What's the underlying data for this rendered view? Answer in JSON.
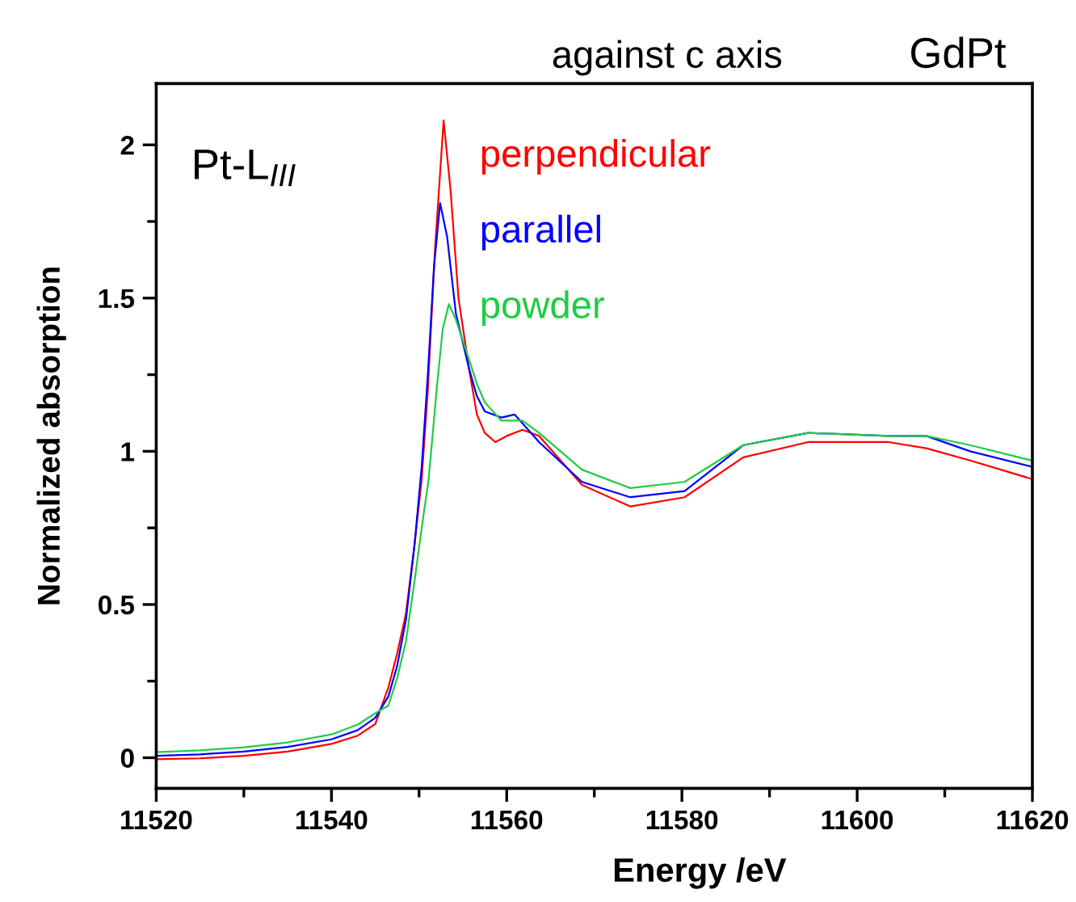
{
  "chart_data": {
    "type": "line",
    "title": "against c axis",
    "subtitle": "GdPt",
    "xlabel": "Energy /eV",
    "ylabel": "Normalized absorption",
    "annotations": [
      "Pt-L$_{III}$"
    ],
    "xlim": [
      11520,
      11620
    ],
    "xticks": [
      11520,
      11540,
      11560,
      11580,
      11600,
      11620
    ],
    "ylim": [
      -0.1,
      2.2
    ],
    "yticks": [
      0,
      0.5,
      1,
      1.5,
      2
    ],
    "grid": false,
    "legend": "top",
    "marker": "none",
    "line_style": "solid",
    "series": [
      {
        "name": "perpendicular",
        "color": "#ff0000",
        "x": [
          11520,
          11525,
          11530,
          11535,
          11540,
          11543,
          11545,
          11546.5,
          11547.5,
          11548.5,
          11549.5,
          11550.3,
          11551,
          11551.8,
          11552.8,
          11553.6,
          11554.5,
          11555.7,
          11556.6,
          11557.5,
          11558.7,
          11560,
          11561.8,
          11563.7,
          11568.6,
          11574.1,
          11580.3,
          11587,
          11594.4,
          11603.6,
          11607.9,
          11612.9,
          11619.9
        ],
        "values": [
          -0.005,
          -0.002,
          0.006,
          0.02,
          0.045,
          0.072,
          0.11,
          0.23,
          0.34,
          0.47,
          0.7,
          0.91,
          1.2,
          1.65,
          2.08,
          1.85,
          1.5,
          1.27,
          1.12,
          1.06,
          1.03,
          1.05,
          1.07,
          1.05,
          0.89,
          0.82,
          0.85,
          0.98,
          1.03,
          1.03,
          1.01,
          0.97,
          0.91
        ]
      },
      {
        "name": "parallel",
        "color": "#0000ff",
        "x": [
          11520,
          11525,
          11530,
          11535,
          11540,
          11543,
          11545,
          11546.5,
          11547.5,
          11548.5,
          11549.5,
          11550.3,
          11551,
          11551.7,
          11552.4,
          11553.2,
          11554.2,
          11555.7,
          11556.6,
          11557.5,
          11559.4,
          11560.9,
          11563.7,
          11568.6,
          11574.1,
          11580.3,
          11587,
          11594.4,
          11603.6,
          11607.9,
          11612.9,
          11619.9
        ],
        "values": [
          0.006,
          0.011,
          0.02,
          0.035,
          0.06,
          0.09,
          0.13,
          0.2,
          0.3,
          0.45,
          0.7,
          0.95,
          1.25,
          1.6,
          1.81,
          1.7,
          1.45,
          1.27,
          1.18,
          1.13,
          1.11,
          1.12,
          1.03,
          0.9,
          0.85,
          0.87,
          1.02,
          1.06,
          1.05,
          1.05,
          1.0,
          0.95
        ]
      },
      {
        "name": "powder",
        "color": "#22cc44",
        "x": [
          11520,
          11525,
          11530,
          11535,
          11540,
          11543,
          11545,
          11546.5,
          11547.5,
          11548.5,
          11549.5,
          11550.3,
          11551.1,
          11552,
          11552.7,
          11553.4,
          11554.2,
          11555,
          11555.7,
          11556.6,
          11557.5,
          11559.4,
          11561.8,
          11563.7,
          11568.6,
          11574.1,
          11580.3,
          11587,
          11594.4,
          11603.6,
          11607.9,
          11612.9,
          11619.9
        ],
        "values": [
          0.018,
          0.024,
          0.034,
          0.05,
          0.076,
          0.108,
          0.145,
          0.17,
          0.26,
          0.38,
          0.58,
          0.75,
          0.91,
          1.2,
          1.4,
          1.48,
          1.43,
          1.36,
          1.3,
          1.22,
          1.16,
          1.1,
          1.1,
          1.06,
          0.94,
          0.88,
          0.9,
          1.02,
          1.06,
          1.05,
          1.05,
          1.02,
          0.97
        ]
      }
    ]
  }
}
